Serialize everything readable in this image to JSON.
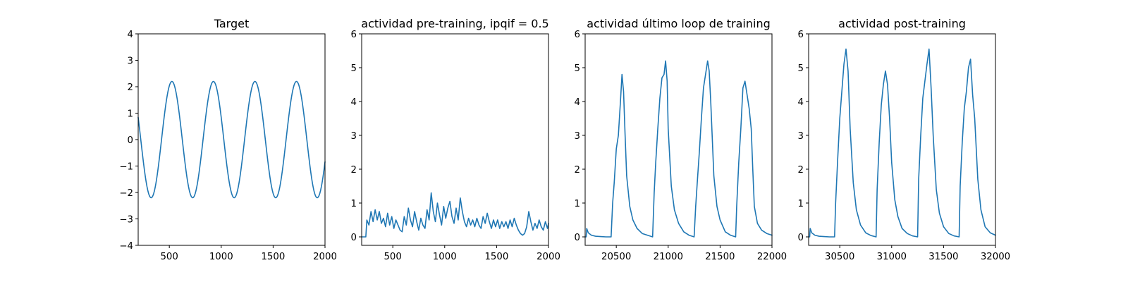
{
  "figure": {
    "line_color": "#1f77b4"
  },
  "chart_data": [
    {
      "type": "line",
      "title": "Target",
      "xlim": [
        200,
        2000
      ],
      "ylim": [
        -4,
        4
      ],
      "xticks": [
        500,
        1000,
        1500,
        2000
      ],
      "yticks": [
        -4,
        -3,
        -2,
        -1,
        0,
        1,
        2,
        3,
        4
      ],
      "grid": false,
      "signal": {
        "kind": "sine",
        "amplitude": 2.2,
        "period": 400,
        "peak_x": 525,
        "x_start": 200,
        "x_end": 2000
      }
    },
    {
      "type": "line",
      "title": "actividad pre-training, ipqif = 0.5",
      "xlim": [
        200,
        2000
      ],
      "ylim": [
        -0.25,
        6
      ],
      "xticks": [
        500,
        1000,
        1500,
        2000
      ],
      "yticks": [
        0,
        1,
        2,
        3,
        4,
        5,
        6
      ],
      "grid": false,
      "series": [
        {
          "x": [
            200,
            240,
            250,
            270,
            290,
            310,
            330,
            350,
            370,
            390,
            410,
            430,
            450,
            470,
            490,
            510,
            530,
            550,
            570,
            590,
            610,
            630,
            650,
            670,
            690,
            710,
            730,
            750,
            770,
            790,
            810,
            830,
            850,
            870,
            890,
            910,
            930,
            950,
            970,
            990,
            1010,
            1030,
            1050,
            1070,
            1090,
            1110,
            1130,
            1150,
            1170,
            1190,
            1210,
            1230,
            1250,
            1270,
            1290,
            1310,
            1330,
            1350,
            1370,
            1390,
            1410,
            1430,
            1450,
            1470,
            1490,
            1510,
            1530,
            1550,
            1570,
            1590,
            1610,
            1630,
            1650,
            1670,
            1690,
            1710,
            1730,
            1750,
            1770,
            1790,
            1810,
            1830,
            1850,
            1870,
            1890,
            1910,
            1930,
            1950,
            1970,
            1990,
            2000
          ],
          "y": [
            0.0,
            0.0,
            0.5,
            0.35,
            0.75,
            0.45,
            0.8,
            0.5,
            0.75,
            0.4,
            0.55,
            0.3,
            0.7,
            0.35,
            0.6,
            0.25,
            0.5,
            0.35,
            0.2,
            0.15,
            0.6,
            0.35,
            0.85,
            0.5,
            0.3,
            0.75,
            0.45,
            0.2,
            0.55,
            0.35,
            0.25,
            0.8,
            0.5,
            1.3,
            0.75,
            0.45,
            1.0,
            0.65,
            0.35,
            0.9,
            0.55,
            0.85,
            1.05,
            0.6,
            0.4,
            0.85,
            0.5,
            1.15,
            0.75,
            0.45,
            0.3,
            0.55,
            0.35,
            0.5,
            0.3,
            0.55,
            0.35,
            0.25,
            0.6,
            0.4,
            0.7,
            0.45,
            0.25,
            0.5,
            0.3,
            0.5,
            0.25,
            0.45,
            0.3,
            0.45,
            0.25,
            0.5,
            0.3,
            0.55,
            0.35,
            0.2,
            0.1,
            0.05,
            0.1,
            0.3,
            0.75,
            0.45,
            0.2,
            0.4,
            0.25,
            0.5,
            0.3,
            0.2,
            0.45,
            0.25,
            0.4
          ]
        }
      ]
    },
    {
      "type": "line",
      "title": "actividad último loop de training",
      "xlim": [
        20200,
        22000
      ],
      "ylim": [
        -0.25,
        6
      ],
      "xticks": [
        20500,
        21000,
        21500,
        22000
      ],
      "yticks": [
        0,
        1,
        2,
        3,
        4,
        5,
        6
      ],
      "grid": false,
      "series": [
        {
          "x": [
            20200,
            20210,
            20215,
            20230,
            20260,
            20300,
            20350,
            20400,
            20450,
            20465,
            20480,
            20500,
            20520,
            20540,
            20555,
            20570,
            20585,
            20600,
            20630,
            20660,
            20700,
            20750,
            20800,
            20850,
            20865,
            20880,
            20900,
            20920,
            20940,
            20960,
            20975,
            20990,
            21000,
            21030,
            21060,
            21100,
            21150,
            21200,
            21250,
            21265,
            21280,
            21300,
            21320,
            21340,
            21360,
            21380,
            21395,
            21410,
            21440,
            21470,
            21500,
            21550,
            21600,
            21650,
            21660,
            21680,
            21700,
            21720,
            21740,
            21760,
            21780,
            21800,
            21815,
            21830,
            21860,
            21900,
            21950,
            22000
          ],
          "y": [
            0.0,
            0.0,
            0.25,
            0.12,
            0.05,
            0.02,
            0.01,
            0.0,
            0.0,
            1.0,
            1.6,
            2.6,
            3.0,
            4.0,
            4.8,
            4.3,
            3.0,
            1.8,
            0.9,
            0.5,
            0.25,
            0.1,
            0.05,
            0.0,
            1.3,
            2.2,
            3.2,
            4.1,
            4.7,
            4.8,
            5.2,
            4.6,
            3.2,
            1.5,
            0.8,
            0.4,
            0.15,
            0.05,
            0.0,
            0.9,
            1.6,
            2.5,
            3.5,
            4.4,
            4.8,
            5.2,
            4.9,
            4.0,
            1.8,
            0.9,
            0.5,
            0.15,
            0.05,
            0.0,
            0.9,
            2.2,
            3.2,
            4.4,
            4.6,
            4.2,
            3.8,
            3.2,
            2.0,
            0.9,
            0.4,
            0.2,
            0.1,
            0.05
          ]
        }
      ]
    },
    {
      "type": "line",
      "title": "actividad post-training",
      "xlim": [
        30200,
        32000
      ],
      "ylim": [
        -0.25,
        6
      ],
      "xticks": [
        30500,
        31000,
        31500,
        32000
      ],
      "yticks": [
        0,
        1,
        2,
        3,
        4,
        5,
        6
      ],
      "grid": false,
      "series": [
        {
          "x": [
            30200,
            30210,
            30215,
            30230,
            30260,
            30300,
            30350,
            30400,
            30450,
            30460,
            30480,
            30500,
            30520,
            30540,
            30560,
            30580,
            30600,
            30630,
            30660,
            30700,
            30750,
            30800,
            30850,
            30860,
            30880,
            30900,
            30920,
            30940,
            30960,
            30980,
            31000,
            31030,
            31060,
            31100,
            31150,
            31200,
            31250,
            31260,
            31280,
            31300,
            31320,
            31340,
            31360,
            31380,
            31400,
            31430,
            31460,
            31500,
            31550,
            31600,
            31650,
            31660,
            31680,
            31700,
            31720,
            31740,
            31760,
            31780,
            31800,
            31830,
            31860,
            31900,
            31950,
            32000
          ],
          "y": [
            0.0,
            0.0,
            0.25,
            0.12,
            0.05,
            0.02,
            0.01,
            0.0,
            0.0,
            1.0,
            2.3,
            3.5,
            4.3,
            5.1,
            5.55,
            4.9,
            3.2,
            1.6,
            0.8,
            0.35,
            0.12,
            0.04,
            0.0,
            1.4,
            2.8,
            3.9,
            4.5,
            4.9,
            4.5,
            3.5,
            2.2,
            1.1,
            0.6,
            0.25,
            0.1,
            0.03,
            0.0,
            1.7,
            3.0,
            4.1,
            4.6,
            5.1,
            5.55,
            4.4,
            3.0,
            1.4,
            0.7,
            0.3,
            0.1,
            0.03,
            0.0,
            1.5,
            2.8,
            3.8,
            4.3,
            5.0,
            5.25,
            4.2,
            3.5,
            1.7,
            0.8,
            0.3,
            0.12,
            0.05
          ]
        }
      ]
    }
  ]
}
